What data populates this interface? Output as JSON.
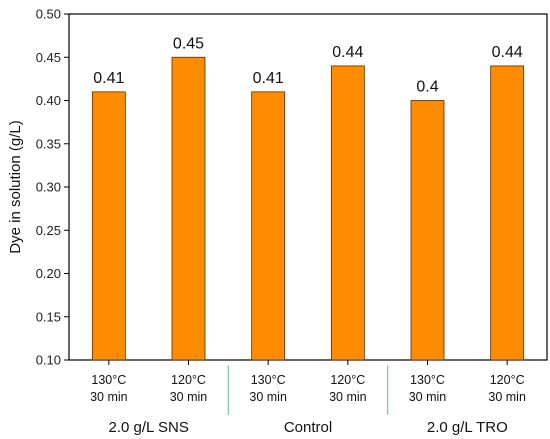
{
  "chart_data": {
    "type": "bar",
    "title": "",
    "ylabel": "Dye in solution (g/L)",
    "xlabel": "",
    "ylim": [
      0.1,
      0.5
    ],
    "yticks": [
      "0.10",
      "0.15",
      "0.20",
      "0.25",
      "0.30",
      "0.35",
      "0.40",
      "0.45",
      "0.50"
    ],
    "grid": false,
    "categories": [
      {
        "line1": "130°C",
        "line2": "30 min"
      },
      {
        "line1": "120°C",
        "line2": "30 min"
      },
      {
        "line1": "130°C",
        "line2": "30 min"
      },
      {
        "line1": "120°C",
        "line2": "30 min"
      },
      {
        "line1": "130°C",
        "line2": "30 min"
      },
      {
        "line1": "120°C",
        "line2": "30 min"
      }
    ],
    "values": [
      0.41,
      0.45,
      0.41,
      0.44,
      0.4,
      0.44
    ],
    "data_labels": [
      "0.41",
      "0.45",
      "0.41",
      "0.44",
      "0.4",
      "0.44"
    ],
    "groups": [
      "2.0 g/L SNS",
      "Control",
      "2.0 g/L TRO"
    ],
    "colors": {
      "bar_fill": "#FF8C00",
      "bar_stroke": "#5a2a00",
      "axis": "#000000",
      "separator": "#7fbfbf"
    }
  }
}
